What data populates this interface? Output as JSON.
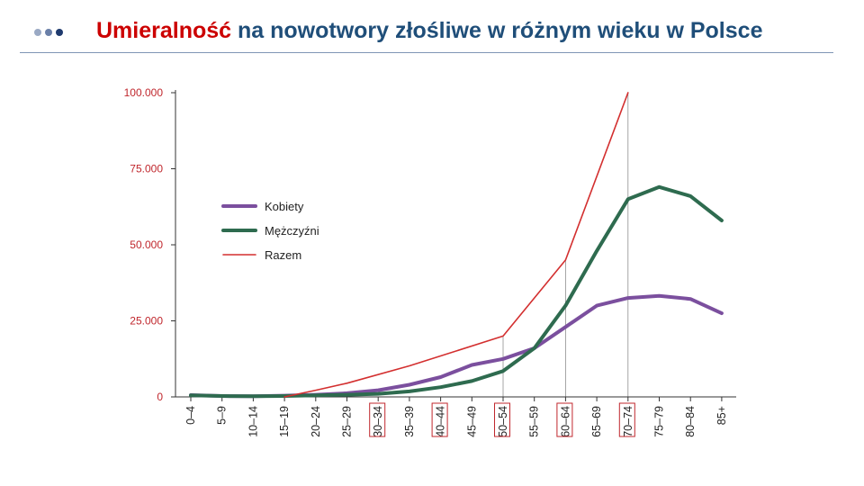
{
  "header": {
    "title_accent": "Umieralność",
    "title_rest": " na nowotwory złośliwe w różnym wieku w Polsce",
    "accent_color": "#cc0000",
    "title_color": "#1f4e79"
  },
  "chart_data": {
    "type": "line",
    "title": "",
    "xlabel": "",
    "ylabel": "",
    "ylim": [
      0,
      100000
    ],
    "yticks": [
      0,
      25000,
      50000,
      75000,
      100000
    ],
    "ytick_labels": [
      "0",
      "25.000",
      "50.000",
      "75.000",
      "100.000"
    ],
    "categories": [
      "0–4",
      "5–9",
      "10–14",
      "15–19",
      "20–24",
      "25–29",
      "30–34",
      "35–39",
      "40–44",
      "45–49",
      "50–54",
      "55–59",
      "60–64",
      "65–69",
      "70–74",
      "75–79",
      "80–84",
      "85+"
    ],
    "highlighted_categories": [
      "30–34",
      "40–44",
      "50–54",
      "60–64",
      "70–74"
    ],
    "legend_position": "left",
    "grid": false,
    "series": [
      {
        "name": "Kobiety",
        "color": "#7b4f9e",
        "values": [
          600,
          300,
          200,
          400,
          700,
          1200,
          2200,
          4000,
          6500,
          10500,
          12500,
          16000,
          23000,
          30000,
          32500,
          33200,
          32200,
          27500
        ]
      },
      {
        "name": "Mężczyźni",
        "color": "#2e6b4f",
        "values": [
          500,
          300,
          200,
          300,
          500,
          700,
          1000,
          1800,
          3200,
          5200,
          8500,
          16000,
          30000,
          48000,
          65000,
          69000,
          66000,
          58000
        ]
      },
      {
        "name": "Razem",
        "color": "#d32f2f",
        "values": [
          null,
          null,
          null,
          0,
          2200,
          4500,
          null,
          10200,
          null,
          null,
          20000,
          null,
          45000,
          null,
          100000,
          null,
          null,
          null
        ]
      }
    ]
  }
}
